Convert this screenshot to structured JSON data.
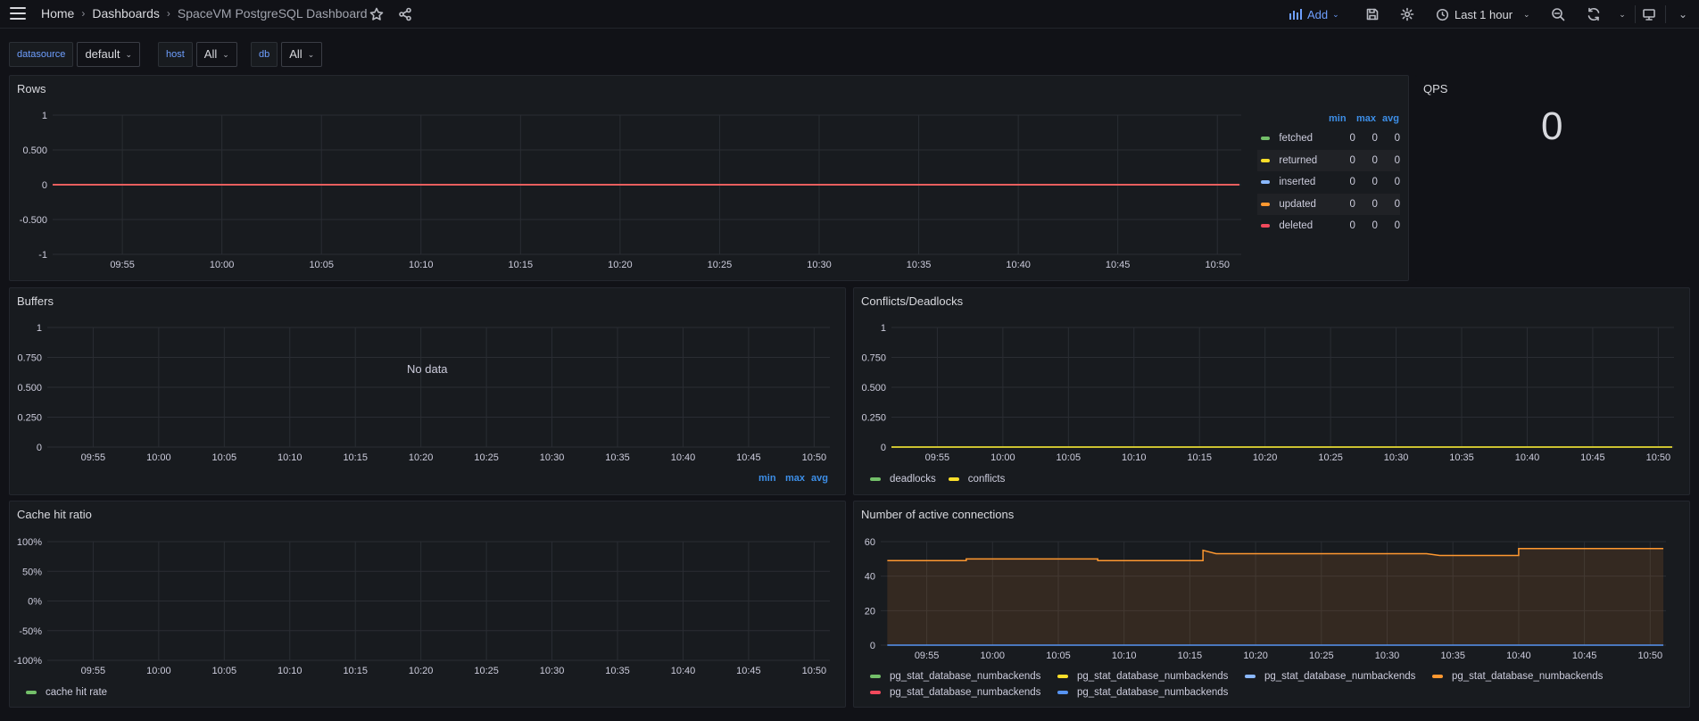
{
  "topbar": {
    "breadcrumbs": [
      "Home",
      "Dashboards",
      "SpaceVM PostgreSQL Dashboard"
    ],
    "add_label": "Add",
    "time_range": "Last 1 hour"
  },
  "variables": [
    {
      "label": "datasource",
      "value": "default"
    },
    {
      "label": "host",
      "value": "All"
    },
    {
      "label": "db",
      "value": "All"
    }
  ],
  "panels": {
    "rows": {
      "title": "Rows"
    },
    "qps": {
      "title": "QPS",
      "value": "0"
    },
    "buffers": {
      "title": "Buffers",
      "no_data": "No data"
    },
    "conflicts": {
      "title": "Conflicts/Deadlocks"
    },
    "cache": {
      "title": "Cache hit ratio"
    },
    "connections": {
      "title": "Number of active connections"
    }
  },
  "legend_stats_headers": [
    "min",
    "max",
    "avg"
  ],
  "rows_legend": [
    {
      "name": "fetched",
      "color": "#73bf69",
      "min": "0",
      "max": "0",
      "avg": "0"
    },
    {
      "name": "returned",
      "color": "#fade2a",
      "min": "0",
      "max": "0",
      "avg": "0"
    },
    {
      "name": "inserted",
      "color": "#8ab8ff",
      "min": "0",
      "max": "0",
      "avg": "0"
    },
    {
      "name": "updated",
      "color": "#ff9830",
      "min": "0",
      "max": "0",
      "avg": "0"
    },
    {
      "name": "deleted",
      "color": "#f2495c",
      "min": "0",
      "max": "0",
      "avg": "0"
    }
  ],
  "conflicts_legend": [
    {
      "name": "deadlocks",
      "color": "#73bf69"
    },
    {
      "name": "conflicts",
      "color": "#fade2a"
    }
  ],
  "cache_legend": [
    {
      "name": "cache hit rate",
      "color": "#73bf69"
    }
  ],
  "connections_legend": [
    {
      "name": "pg_stat_database_numbackends",
      "color": "#73bf69"
    },
    {
      "name": "pg_stat_database_numbackends",
      "color": "#fade2a"
    },
    {
      "name": "pg_stat_database_numbackends",
      "color": "#8ab8ff"
    },
    {
      "name": "pg_stat_database_numbackends",
      "color": "#ff9830"
    },
    {
      "name": "pg_stat_database_numbackends",
      "color": "#f2495c"
    },
    {
      "name": "pg_stat_database_numbackends",
      "color": "#5794f2"
    }
  ],
  "chart_data": [
    {
      "type": "line",
      "title": "Rows",
      "x": [
        "09:55",
        "10:00",
        "10:05",
        "10:10",
        "10:15",
        "10:20",
        "10:25",
        "10:30",
        "10:35",
        "10:40",
        "10:45",
        "10:50"
      ],
      "yticks": [
        "1",
        "0.500",
        "0",
        "-0.500",
        "-1"
      ],
      "ylim": [
        -1,
        1
      ],
      "series": [
        {
          "name": "fetched",
          "values": [
            0,
            0,
            0,
            0,
            0,
            0,
            0,
            0,
            0,
            0,
            0,
            0
          ]
        },
        {
          "name": "returned",
          "values": [
            0,
            0,
            0,
            0,
            0,
            0,
            0,
            0,
            0,
            0,
            0,
            0
          ]
        },
        {
          "name": "inserted",
          "values": [
            0,
            0,
            0,
            0,
            0,
            0,
            0,
            0,
            0,
            0,
            0,
            0
          ]
        },
        {
          "name": "updated",
          "values": [
            0,
            0,
            0,
            0,
            0,
            0,
            0,
            0,
            0,
            0,
            0,
            0
          ]
        },
        {
          "name": "deleted",
          "values": [
            0,
            0,
            0,
            0,
            0,
            0,
            0,
            0,
            0,
            0,
            0,
            0
          ]
        }
      ]
    },
    {
      "type": "line",
      "title": "Buffers",
      "x": [
        "09:55",
        "10:00",
        "10:05",
        "10:10",
        "10:15",
        "10:20",
        "10:25",
        "10:30",
        "10:35",
        "10:40",
        "10:45",
        "10:50"
      ],
      "yticks": [
        "1",
        "0.750",
        "0.500",
        "0.250",
        "0"
      ],
      "ylim": [
        0,
        1
      ],
      "series": []
    },
    {
      "type": "line",
      "title": "Conflicts/Deadlocks",
      "x": [
        "09:55",
        "10:00",
        "10:05",
        "10:10",
        "10:15",
        "10:20",
        "10:25",
        "10:30",
        "10:35",
        "10:40",
        "10:45",
        "10:50"
      ],
      "yticks": [
        "1",
        "0.750",
        "0.500",
        "0.250",
        "0"
      ],
      "ylim": [
        0,
        1
      ],
      "series": [
        {
          "name": "deadlocks",
          "values": [
            0,
            0,
            0,
            0,
            0,
            0,
            0,
            0,
            0,
            0,
            0,
            0
          ]
        },
        {
          "name": "conflicts",
          "values": [
            0,
            0,
            0,
            0,
            0,
            0,
            0,
            0,
            0,
            0,
            0,
            0
          ]
        }
      ]
    },
    {
      "type": "line",
      "title": "Cache hit ratio",
      "x": [
        "09:55",
        "10:00",
        "10:05",
        "10:10",
        "10:15",
        "10:20",
        "10:25",
        "10:30",
        "10:35",
        "10:40",
        "10:45",
        "10:50"
      ],
      "yticks": [
        "100%",
        "50%",
        "0%",
        "-50%",
        "-100%"
      ],
      "ylim": [
        -100,
        100
      ],
      "series": []
    },
    {
      "type": "area",
      "title": "Number of active connections",
      "x": [
        "09:55",
        "10:00",
        "10:05",
        "10:10",
        "10:15",
        "10:20",
        "10:25",
        "10:30",
        "10:35",
        "10:40",
        "10:45",
        "10:50"
      ],
      "yticks": [
        "60",
        "40",
        "20",
        "0"
      ],
      "ylim": [
        0,
        60
      ],
      "series": [
        {
          "name": "pg_stat_database_numbackends",
          "color": "#ff9830",
          "points": [
            [
              "09:52",
              49
            ],
            [
              "09:58",
              49
            ],
            [
              "09:58",
              50
            ],
            [
              "10:08",
              50
            ],
            [
              "10:08",
              49
            ],
            [
              "10:16",
              49
            ],
            [
              "10:16",
              55
            ],
            [
              "10:17",
              53
            ],
            [
              "10:33",
              53
            ],
            [
              "10:34",
              52
            ],
            [
              "10:40",
              52
            ],
            [
              "10:40",
              56
            ],
            [
              "10:51",
              56
            ]
          ]
        },
        {
          "name": "pg_stat_database_numbackends",
          "color": "#5794f2",
          "points": [
            [
              "09:52",
              0
            ],
            [
              "10:51",
              0
            ]
          ]
        }
      ]
    }
  ]
}
